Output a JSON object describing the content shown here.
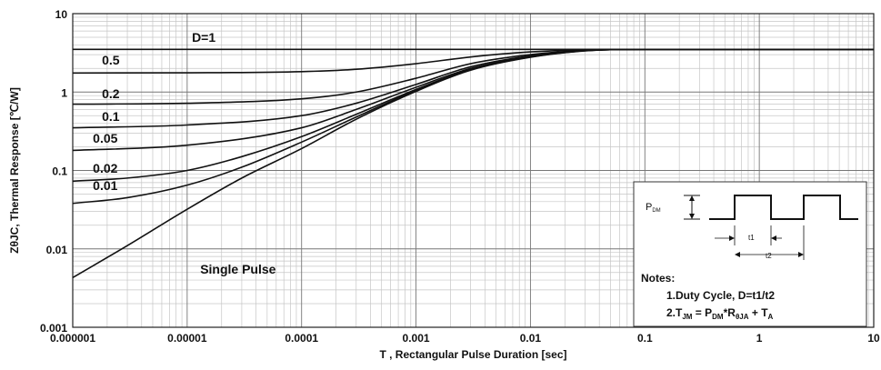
{
  "chart_data": {
    "type": "line",
    "title": "",
    "xlabel": "T , Rectangular Pulse Duration [sec]",
    "ylabel": "ZθJC, Thermal Response [℃/W]",
    "xscale": "log",
    "yscale": "log",
    "xlim": [
      1e-06,
      10
    ],
    "ylim": [
      0.001,
      10
    ],
    "grid": true,
    "x_ticks": [
      {
        "value": 1e-06,
        "label": "0.000001"
      },
      {
        "value": 1e-05,
        "label": "0.00001"
      },
      {
        "value": 0.0001,
        "label": "0.0001"
      },
      {
        "value": 0.001,
        "label": "0.001"
      },
      {
        "value": 0.01,
        "label": "0.01"
      },
      {
        "value": 0.1,
        "label": "0.1"
      },
      {
        "value": 1,
        "label": "1"
      },
      {
        "value": 10,
        "label": "10"
      }
    ],
    "y_ticks": [
      {
        "value": 0.001,
        "label": "0.001"
      },
      {
        "value": 0.01,
        "label": "0.01"
      },
      {
        "value": 0.1,
        "label": "0.1"
      },
      {
        "value": 1,
        "label": "1"
      },
      {
        "value": 10,
        "label": "10"
      }
    ],
    "series": [
      {
        "name": "D=1",
        "x": [
          1e-06,
          10
        ],
        "y": [
          3.5,
          3.5
        ]
      },
      {
        "name": "0.5",
        "x": [
          1e-06,
          1e-05,
          0.0001,
          0.0003,
          0.001,
          0.003,
          0.01,
          0.03,
          0.1,
          10
        ],
        "y": [
          1.75,
          1.76,
          1.82,
          1.95,
          2.3,
          2.8,
          3.25,
          3.45,
          3.5,
          3.5
        ]
      },
      {
        "name": "0.2",
        "x": [
          1e-06,
          1e-05,
          0.0001,
          0.0003,
          0.001,
          0.003,
          0.01,
          0.03,
          0.1,
          10
        ],
        "y": [
          0.7,
          0.72,
          0.82,
          1.0,
          1.5,
          2.3,
          3.0,
          3.4,
          3.5,
          3.5
        ]
      },
      {
        "name": "0.1",
        "x": [
          1e-06,
          1e-05,
          0.0001,
          0.0003,
          0.001,
          0.003,
          0.01,
          0.03,
          0.1,
          10
        ],
        "y": [
          0.35,
          0.38,
          0.5,
          0.72,
          1.25,
          2.1,
          2.9,
          3.4,
          3.5,
          3.5
        ]
      },
      {
        "name": "0.05",
        "x": [
          1e-06,
          1e-05,
          0.0001,
          0.0003,
          0.001,
          0.003,
          0.01,
          0.03,
          0.1,
          10
        ],
        "y": [
          0.18,
          0.21,
          0.35,
          0.6,
          1.15,
          2.0,
          2.85,
          3.38,
          3.5,
          3.5
        ]
      },
      {
        "name": "0.02",
        "x": [
          1e-06,
          3e-06,
          1e-05,
          3e-05,
          0.0001,
          0.0003,
          0.001,
          0.003,
          0.01,
          0.03,
          0.1,
          10
        ],
        "y": [
          0.073,
          0.08,
          0.1,
          0.15,
          0.27,
          0.52,
          1.08,
          1.95,
          2.82,
          3.37,
          3.5,
          3.5
        ]
      },
      {
        "name": "0.01",
        "x": [
          1e-06,
          3e-06,
          1e-05,
          3e-05,
          0.0001,
          0.0003,
          0.001,
          0.003,
          0.01,
          0.03,
          0.1,
          10
        ],
        "y": [
          0.038,
          0.045,
          0.065,
          0.11,
          0.23,
          0.48,
          1.05,
          1.93,
          2.8,
          3.36,
          3.5,
          3.5
        ]
      },
      {
        "name": "Single Pulse",
        "x": [
          1e-06,
          3e-06,
          1e-05,
          3e-05,
          0.0001,
          0.0003,
          0.001,
          0.003,
          0.01,
          0.03,
          0.1,
          10
        ],
        "y": [
          0.0043,
          0.011,
          0.032,
          0.08,
          0.19,
          0.45,
          1.02,
          1.9,
          2.78,
          3.35,
          3.5,
          3.5
        ]
      }
    ],
    "curve_labels": [
      {
        "text": "D=1",
        "x": 1.1e-05,
        "y": 4.4
      },
      {
        "text": "0.5",
        "x": 1.8e-06,
        "y": 2.25
      },
      {
        "text": "0.2",
        "x": 1.8e-06,
        "y": 0.83
      },
      {
        "text": "0.1",
        "x": 1.8e-06,
        "y": 0.43
      },
      {
        "text": "0.05",
        "x": 1.5e-06,
        "y": 0.225
      },
      {
        "text": "0.02",
        "x": 1.5e-06,
        "y": 0.093
      },
      {
        "text": "0.01",
        "x": 1.5e-06,
        "y": 0.056
      },
      {
        "text": "Single Pulse",
        "x": 1.3e-05,
        "y": 0.0048
      }
    ],
    "inset": {
      "pdm_label": "P",
      "pdm_sub": "DM",
      "t1_label": "t1",
      "t2_label": "t2",
      "notes_title": "Notes:",
      "note1": "1.Duty  Cycle, D=t1/t2",
      "note2_T": "2.T",
      "note2_Tsub": "JM",
      "note2_eq": " = P",
      "note2_Psub": "DM",
      "note2_star": "*R",
      "note2_Rsub": "θJA",
      "note2_plus": " + T",
      "note2_Asub": "A"
    }
  }
}
